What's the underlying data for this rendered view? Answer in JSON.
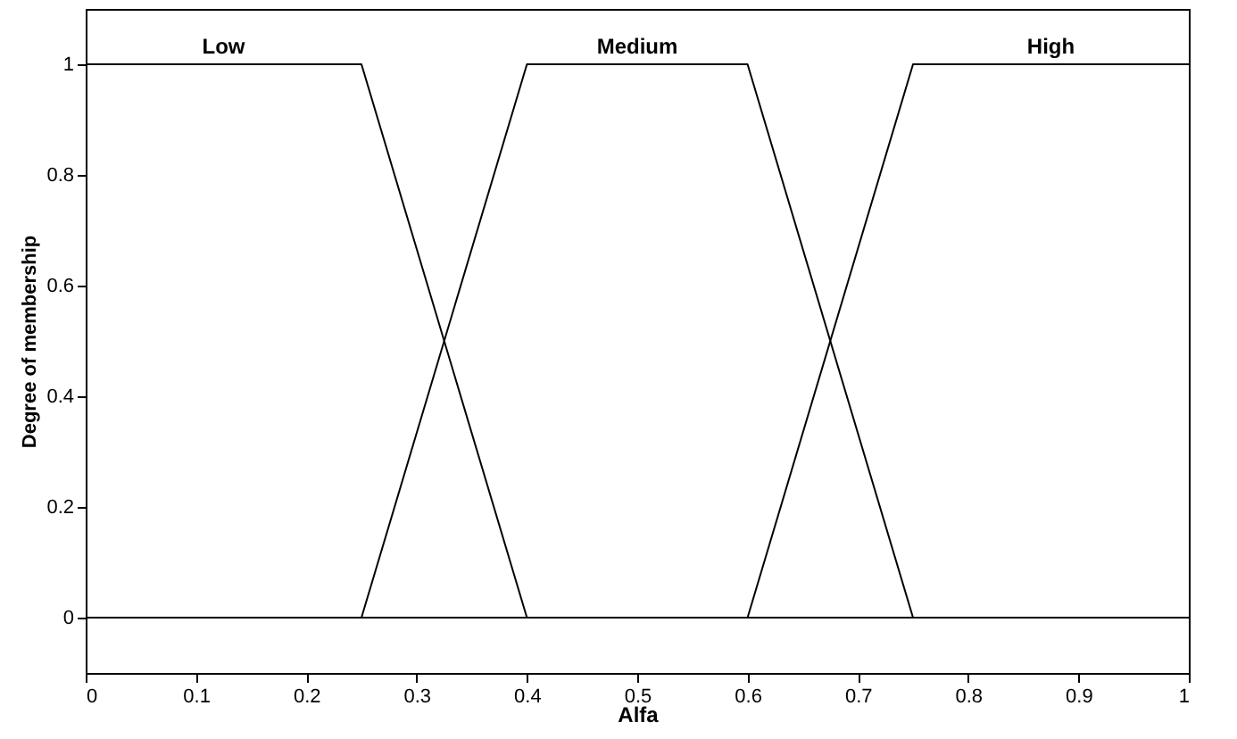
{
  "chart_data": {
    "type": "line",
    "xlabel": "Alfa",
    "ylabel": "Degree of membership",
    "xlim": [
      0,
      1
    ],
    "ylim": [
      -0.1,
      1.1
    ],
    "xticks": [
      0,
      0.1,
      0.2,
      0.3,
      0.4,
      0.5,
      0.6,
      0.7,
      0.8,
      0.9,
      1
    ],
    "yticks": [
      0,
      0.2,
      0.4,
      0.6,
      0.8,
      1
    ],
    "grid": false,
    "legend": false,
    "marker": "none",
    "line_style": "solid",
    "series": [
      {
        "name": "Low",
        "color": "#000000",
        "x": [
          0,
          0.25,
          0.4,
          1
        ],
        "values": [
          1,
          1,
          0,
          0
        ]
      },
      {
        "name": "Medium",
        "color": "#000000",
        "x": [
          0,
          0.25,
          0.4,
          0.6,
          0.75,
          1
        ],
        "values": [
          0,
          0,
          1,
          1,
          0,
          0
        ]
      },
      {
        "name": "High",
        "color": "#000000",
        "x": [
          0,
          0.6,
          0.75,
          1
        ],
        "values": [
          0,
          0,
          1,
          1
        ]
      }
    ]
  }
}
